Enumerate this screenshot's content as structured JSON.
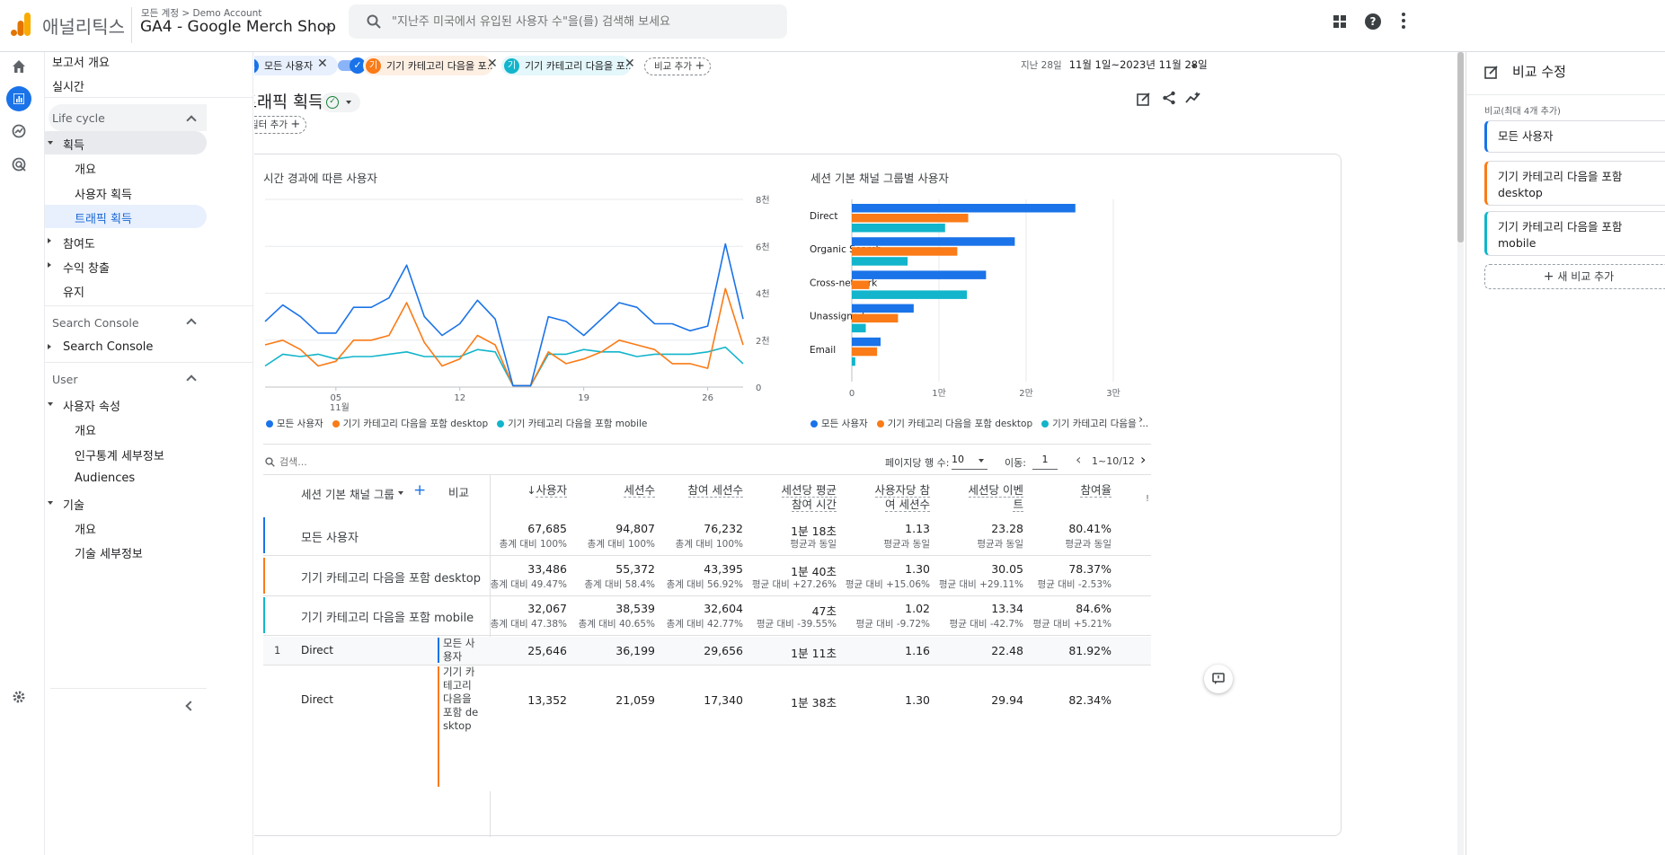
{
  "topbar": {
    "app_name": "애널리틱스",
    "breadcrumb_all": "모든 계정",
    "breadcrumb_sep": ">",
    "breadcrumb_account": "Demo Account",
    "property": "GA4 - Google Merch Shop",
    "search_placeholder": "\"지난주 미국에서 유입된 사용자 수\"을(를) 검색해 보세요"
  },
  "leftnav": {
    "reports_overview": "보고서 개요",
    "realtime": "실시간",
    "lifecycle": "Life cycle",
    "acquisition": "획득",
    "acq_overview": "개요",
    "user_acquisition": "사용자 획득",
    "traffic_acquisition": "트래픽 획득",
    "engagement": "참여도",
    "monetization": "수익 창출",
    "retention": "유지",
    "search_console_section": "Search Console",
    "search_console_item": "Search Console",
    "user_section": "User",
    "user_attributes": "사용자 속성",
    "ua_overview": "개요",
    "demographics_detail": "인구통계 세부정보",
    "audiences": "Audiences",
    "tech": "기술",
    "tech_overview": "개요",
    "tech_detail": "기술 세부정보"
  },
  "comparisons": {
    "chip1": {
      "badge": "모",
      "label": "모든 사용자",
      "color": "#1a73e8"
    },
    "chip2": {
      "badge": "기",
      "label": "기기 카테고리 다음을 포...",
      "color": "#fa7b17"
    },
    "chip3": {
      "badge": "기",
      "label": "기기 카테고리 다음을 포...",
      "color": "#12b5cb"
    },
    "add_comparison": "비교 추가"
  },
  "date": {
    "period": "지난 28일",
    "range": "11월 1일~2023년 11월 28일"
  },
  "page": {
    "title": "트래픽 획득",
    "add_filter": "필터 추가"
  },
  "line_chart_title": "시간 경과에 따른 사용자",
  "bar_chart_title": "세션 기본 채널 그룹별 사용자",
  "legend": {
    "all_users": "모든 사용자",
    "desktop": "기기 카테고리 다음을 포함 desktop",
    "mobile": "기기 카테고리 다음을 포함 mobile",
    "mobile_short": "기기 카테고리 다음을 ..."
  },
  "chart_data": [
    {
      "type": "line",
      "title": "시간 경과에 따른 사용자",
      "x": [
        1,
        2,
        3,
        4,
        5,
        6,
        7,
        8,
        9,
        10,
        11,
        12,
        13,
        14,
        15,
        16,
        17,
        18,
        19,
        20,
        21,
        22,
        23,
        24,
        25,
        26,
        27,
        28
      ],
      "x_ticks": [
        "05",
        "12",
        "19",
        "26"
      ],
      "x_tick_values": [
        5,
        12,
        19,
        26
      ],
      "x_sublabel": "11월",
      "y_ticks": [
        "0",
        "2천",
        "4천",
        "6천",
        "8천"
      ],
      "ylim": [
        0,
        8000
      ],
      "series": [
        {
          "name": "모든 사용자",
          "color": "#1a73e8",
          "values": [
            2800,
            3500,
            3000,
            2300,
            2300,
            3400,
            3400,
            3800,
            5200,
            3000,
            2200,
            2700,
            3700,
            2900,
            60,
            60,
            3000,
            2800,
            2200,
            2900,
            3600,
            3400,
            2700,
            2700,
            2400,
            2600,
            6100,
            2900
          ]
        },
        {
          "name": "기기 카테고리 다음을 포함 desktop",
          "color": "#fa7b17",
          "values": [
            1800,
            2000,
            1600,
            900,
            1100,
            2000,
            2000,
            2200,
            3600,
            1900,
            900,
            1200,
            2200,
            1800,
            60,
            60,
            1500,
            1000,
            1200,
            1500,
            2000,
            1800,
            1600,
            1000,
            1000,
            800,
            4200,
            1800
          ]
        },
        {
          "name": "기기 카테고리 다음을 포함 mobile",
          "color": "#12b5cb",
          "values": [
            900,
            1400,
            1300,
            1400,
            1200,
            1300,
            1300,
            1400,
            1500,
            1300,
            1300,
            1300,
            1600,
            1500,
            60,
            60,
            1400,
            1400,
            1600,
            1500,
            1500,
            1300,
            1400,
            1400,
            1400,
            1500,
            1700,
            1000
          ]
        }
      ]
    },
    {
      "type": "bar",
      "orientation": "horizontal",
      "title": "세션 기본 채널 그룹별 사용자",
      "categories": [
        "Direct",
        "Organic Search",
        "Cross-network",
        "Unassigned",
        "Email"
      ],
      "x_ticks": [
        "0",
        "1만",
        "2만",
        "3만"
      ],
      "xlim": [
        0,
        30000
      ],
      "series": [
        {
          "name": "모든 사용자",
          "color": "#1a73e8",
          "values": [
            25646,
            18700,
            15400,
            7100,
            3300
          ]
        },
        {
          "name": "기기 카테고리 다음을 포함 desktop",
          "color": "#fa7b17",
          "values": [
            13352,
            12100,
            2000,
            5300,
            2900
          ]
        },
        {
          "name": "기기 카테고리 다음을 포함 mobile",
          "color": "#12b5cb",
          "values": [
            10700,
            6400,
            13200,
            1600,
            400
          ]
        }
      ]
    },
    {
      "type": "table",
      "columns": [
        "세션 기본 채널 그룹",
        "비교",
        "사용자",
        "세션수",
        "참여 세션수",
        "세션당 평균 참여 시간",
        "사용자당 참여 세션수",
        "세션당 이벤트",
        "참여율"
      ]
    }
  ],
  "table": {
    "search_placeholder": "검색...",
    "rows_per_page_label": "페이지당 행 수:",
    "rows_per_page": "10",
    "goto_label": "이동:",
    "goto_value": "1",
    "range": "1~10/12",
    "dimension_header": "세션 기본 채널 그룹",
    "compare_header": "비교",
    "headers": [
      "사용자",
      "세션수",
      "참여 세션수",
      "세션당 평균 참여 시간",
      "사용자당 참여 세션수",
      "세션당 이벤트",
      "참여율"
    ],
    "summary_rows": [
      {
        "label": "모든 사용자",
        "color": "#1a73e8",
        "values": [
          "67,685",
          "94,807",
          "76,232",
          "1분 18초",
          "1.13",
          "23.28",
          "80.41%"
        ],
        "subs": [
          "총계 대비 100%",
          "총계 대비 100%",
          "총계 대비 100%",
          "평균과 동일",
          "평균과 동일",
          "평균과 동일",
          "평균과 동일"
        ]
      },
      {
        "label": "기기 카테고리 다음을 포함 desktop",
        "color": "#fa7b17",
        "values": [
          "33,486",
          "55,372",
          "43,395",
          "1분 40초",
          "1.30",
          "30.05",
          "78.37%"
        ],
        "subs": [
          "총계 대비 49.47%",
          "총계 대비 58.4%",
          "총계 대비 56.92%",
          "평균 대비 +27.26%",
          "평균 대비 +15.06%",
          "평균 대비 +29.11%",
          "평균 대비 -2.53%"
        ]
      },
      {
        "label": "기기 카테고리 다음을 포함 mobile",
        "color": "#12b5cb",
        "values": [
          "32,067",
          "38,539",
          "32,604",
          "47초",
          "1.02",
          "13.34",
          "84.6%"
        ],
        "subs": [
          "총계 대비 47.38%",
          "총계 대비 40.65%",
          "총계 대비 42.77%",
          "평균 대비 -39.55%",
          "평균 대비 -9.72%",
          "평균 대비 -42.7%",
          "평균 대비 +5.21%"
        ]
      }
    ],
    "data_rows": [
      {
        "index": "1",
        "channel": "Direct",
        "compare": "모든 사용자",
        "values": [
          "25,646",
          "36,199",
          "29,656",
          "1분 11초",
          "1.16",
          "22.48",
          "81.92%"
        ]
      },
      {
        "index": "",
        "channel": "Direct",
        "compare": "기기 카테고리 다음을 포함 desktop",
        "values": [
          "13,352",
          "21,059",
          "17,340",
          "1분 38초",
          "1.30",
          "29.94",
          "82.34%"
        ]
      }
    ]
  },
  "rightpanel": {
    "title": "비교 수정",
    "subtitle": "비교(최대 4개 추가)",
    "items": [
      "모든 사용자",
      "기기 카테고리 다음을 포함 desktop",
      "기기 카테고리 다음을 포함 mobile"
    ],
    "add_new": "새 비교 추가"
  }
}
